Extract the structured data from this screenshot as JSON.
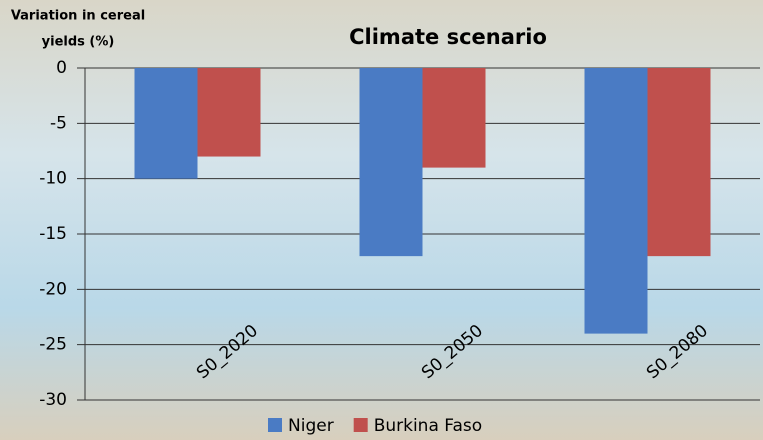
{
  "chart_data": {
    "type": "bar",
    "title": "Climate scenario",
    "ylabel": [
      "Variation in cereal",
      "yields (%)"
    ],
    "categories": [
      "S0_2020",
      "S0_2050",
      "S0_2080"
    ],
    "series": [
      {
        "name": "Niger",
        "color": "#4a7bc4",
        "values": [
          -10,
          -17,
          -24
        ]
      },
      {
        "name": "Burkina Faso",
        "color": "#c0504d",
        "values": [
          -8,
          -9,
          -17
        ]
      }
    ],
    "ylim": [
      -30,
      0
    ],
    "yticks": [
      0,
      -5,
      -10,
      -15,
      -20,
      -25,
      -30
    ],
    "grid": true
  }
}
